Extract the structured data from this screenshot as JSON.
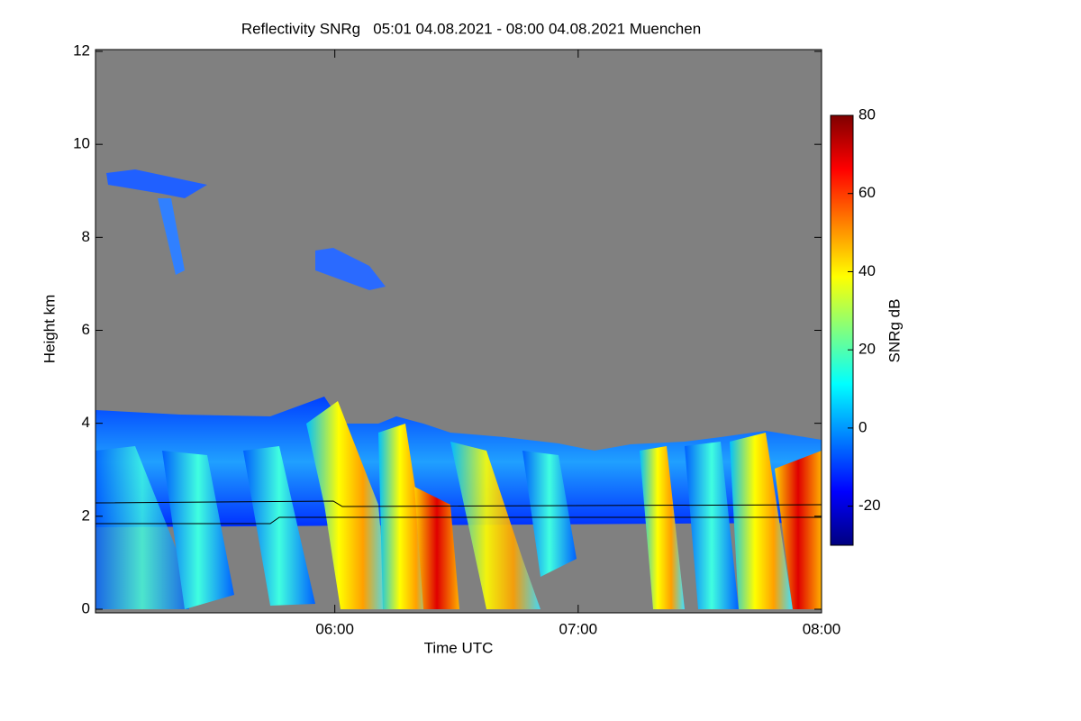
{
  "chart_data": {
    "type": "heatmap",
    "title": "Reflectivity SNRg   05:01 04.08.2021 - 08:00 04.08.2021 Muenchen",
    "x_label": "Time UTC",
    "y_label": "Height km",
    "colorbar_label": "SNRg dB",
    "xlim": [
      301,
      480
    ],
    "xticks": [
      {
        "value": 360,
        "label": "06:00"
      },
      {
        "value": 420,
        "label": "07:00"
      },
      {
        "value": 480,
        "label": "08:00"
      }
    ],
    "ylim": [
      0,
      12
    ],
    "yticks": [
      0,
      2,
      4,
      6,
      8,
      10,
      12
    ],
    "clim": [
      -30,
      80
    ],
    "cticks": [
      -20,
      0,
      20,
      40,
      60,
      80
    ],
    "colormap": [
      "#00007f",
      "#0000ff",
      "#0080ff",
      "#00ffff",
      "#80ff80",
      "#ffff00",
      "#ff8000",
      "#ff0000",
      "#7f0000"
    ],
    "background": "#808080"
  }
}
